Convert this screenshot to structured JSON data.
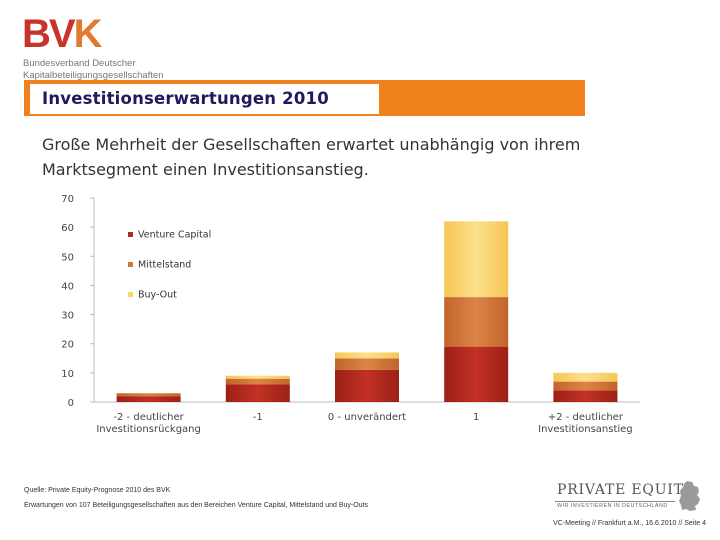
{
  "logo": {
    "mark_a": "BV",
    "mark_b": "K",
    "line1": "Bundesverband Deutscher",
    "line2": "Kapitalbeteiligungsgesellschaften"
  },
  "title": "Investitionserwartungen 2010",
  "subtitle": "Große Mehrheit der Gesellschaften erwartet unabhängig von ihrem Marktsegment einen Investitionsanstieg.",
  "colors": {
    "accent": "#f0821e",
    "title_text": "#1f1a5e",
    "venture_capital": "#b52a1e",
    "mittelstand": "#d2763a",
    "buy_out": "#fbd46a"
  },
  "chart_data": {
    "type": "bar",
    "stacked": true,
    "categories": [
      "-2 - deutlicher Investitionsrückgang",
      "-1",
      "0 - unverändert",
      "1",
      "+2 - deutlicher Investitionsanstieg"
    ],
    "category_lines": [
      [
        "-2 - deutlicher",
        "Investitionsrückgang"
      ],
      [
        "-1"
      ],
      [
        "0 - unverändert"
      ],
      [
        "1"
      ],
      [
        "+2 - deutlicher",
        "Investitionsanstieg"
      ]
    ],
    "series": [
      {
        "name": "Venture Capital",
        "values": [
          2,
          6,
          11,
          19,
          4
        ],
        "color": "#b52a1e"
      },
      {
        "name": "Mittelstand",
        "values": [
          1,
          2,
          4,
          17,
          3
        ],
        "color": "#d2763a"
      },
      {
        "name": "Buy-Out",
        "values": [
          0,
          1,
          2,
          26,
          3
        ],
        "color": "#fbd46a"
      }
    ],
    "yticks": [
      0,
      10,
      20,
      30,
      40,
      50,
      60,
      70
    ],
    "ylim": [
      0,
      70
    ],
    "grid": false,
    "legend_position": "upper-left-inside"
  },
  "source": {
    "line1": "Quelle: Private Equity-Prognose 2010 des BVK",
    "line2": "Erwartungen von 107 Beteiligungsgesellschaften aus den Bereichen Venture Capital, Mittelstand und Buy-Outs"
  },
  "pe_logo": {
    "text": "PRIVATE EQUITY",
    "tagline": "WIR INVESTIEREN IN DEUTSCHLAND"
  },
  "footer": "VC-Meeting // Frankfurt a.M., 16.6.2010 // Seite 4"
}
